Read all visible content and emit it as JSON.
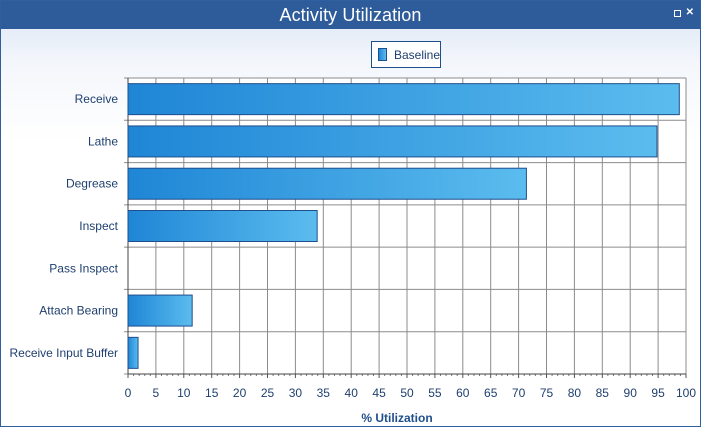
{
  "window": {
    "title": "Activity Utilization",
    "restore_icon": "restore-icon",
    "close_icon": "close-icon",
    "close_glyph": "✕"
  },
  "chart_data": {
    "type": "bar",
    "orientation": "horizontal",
    "categories": [
      "Receive",
      "Lathe",
      "Degrease",
      "Inspect",
      "Pass Inspect",
      "Attach Bearing",
      "Receive Input Buffer"
    ],
    "series": [
      {
        "name": "Baseline",
        "values": [
          98.8,
          94.8,
          71.4,
          33.9,
          0,
          11.5,
          1.8
        ]
      }
    ],
    "xlabel": "% Utilization",
    "xlim": [
      0,
      100
    ],
    "xticks": [
      0,
      5,
      10,
      15,
      20,
      25,
      30,
      35,
      40,
      45,
      50,
      55,
      60,
      65,
      70,
      75,
      80,
      85,
      90,
      95,
      100
    ],
    "grid": true,
    "legend": "top-center",
    "colors": {
      "bar_start": "#1f86d6",
      "bar_end": "#5bbcee",
      "bar_border": "#1f4e8c",
      "grid": "#8c8c8c",
      "title_bar": "#2e5c9a"
    }
  }
}
